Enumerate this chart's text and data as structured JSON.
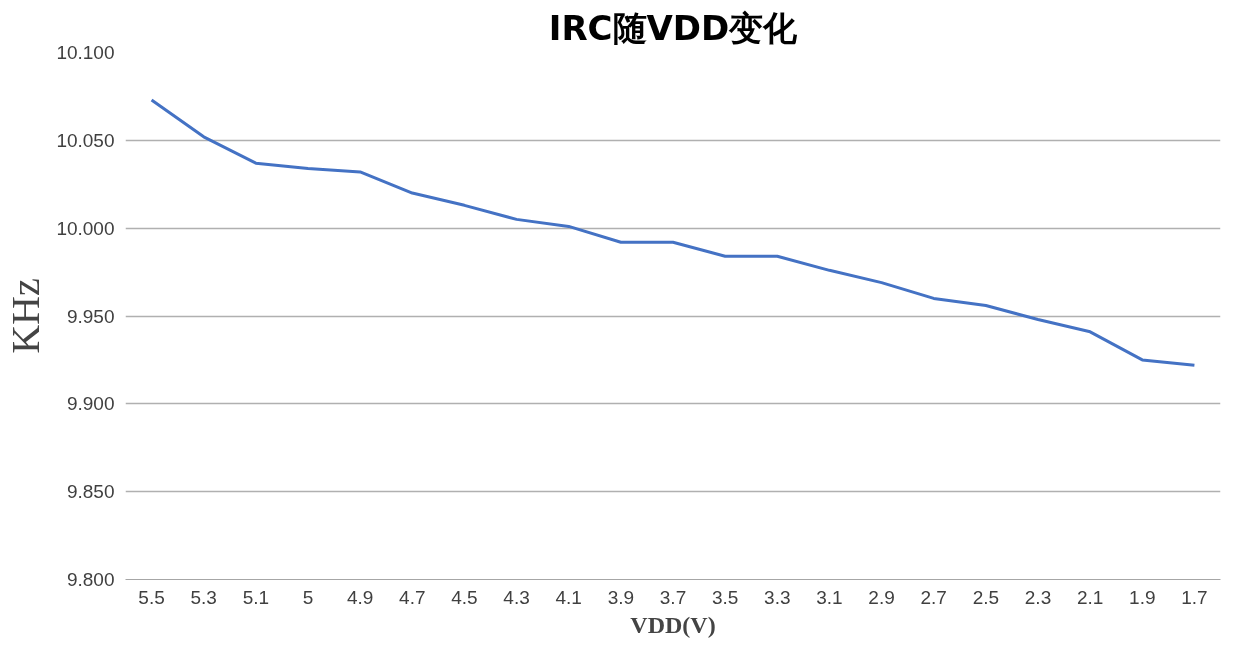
{
  "chart_data": {
    "type": "line",
    "title": "IRC随VDD变化",
    "xlabel": "VDD(V)",
    "ylabel": "KHz",
    "categories": [
      "5.5",
      "5.3",
      "5.1",
      "5",
      "4.9",
      "4.7",
      "4.5",
      "4.3",
      "4.1",
      "3.9",
      "3.7",
      "3.5",
      "3.3",
      "3.1",
      "2.9",
      "2.7",
      "2.5",
      "2.3",
      "2.1",
      "1.9",
      "1.7"
    ],
    "series": [
      {
        "color": "#4472c4",
        "values": [
          10.073,
          10.052,
          10.037,
          10.034,
          10.032,
          10.02,
          10.013,
          10.005,
          10.001,
          9.992,
          9.992,
          9.984,
          9.984,
          9.976,
          9.969,
          9.96,
          9.956,
          9.948,
          9.941,
          9.925,
          9.922
        ]
      }
    ],
    "ylim": [
      9.8,
      10.1
    ],
    "yticks": [
      {
        "value": 9.8,
        "label": "9.800"
      },
      {
        "value": 9.85,
        "label": "9.850"
      },
      {
        "value": 9.9,
        "label": "9.900"
      },
      {
        "value": 9.95,
        "label": "9.950"
      },
      {
        "value": 10.0,
        "label": "10.000"
      },
      {
        "value": 10.05,
        "label": "10.050"
      },
      {
        "value": 10.1,
        "label": "10.100"
      }
    ],
    "grid": "y",
    "marker": "none",
    "line_style": "solid"
  }
}
